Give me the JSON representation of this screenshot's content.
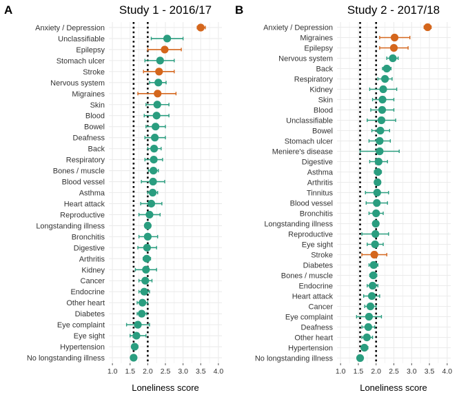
{
  "colors": {
    "typical": "#2a9d7f",
    "outlier": "#d4661c",
    "grid": "#ebebeb",
    "refline": "#000000"
  },
  "chart_data": [
    {
      "type": "scatter",
      "panel_label": "A",
      "title": "Study 1 - 2016/17",
      "xlabel": "Loneliness score",
      "xlim": [
        0.9,
        4.1
      ],
      "xticks": [
        "1.0",
        "1.5",
        "2.0",
        "2.5",
        "3.0",
        "3.5",
        "4.0"
      ],
      "reference_lines": [
        1.6,
        2.0
      ],
      "points": [
        {
          "label": "Anxiety / Depression",
          "value": 3.5,
          "lo": 3.4,
          "hi": 3.63,
          "group": "outlier"
        },
        {
          "label": "Unclassifiable",
          "value": 2.55,
          "lo": 2.1,
          "hi": 3.0,
          "group": "typical"
        },
        {
          "label": "Epilepsy",
          "value": 2.48,
          "lo": 2.0,
          "hi": 2.95,
          "group": "outlier"
        },
        {
          "label": "Stomach ulcer",
          "value": 2.35,
          "lo": 1.92,
          "hi": 2.75,
          "group": "typical"
        },
        {
          "label": "Stroke",
          "value": 2.32,
          "lo": 1.88,
          "hi": 2.75,
          "group": "outlier"
        },
        {
          "label": "Nervous system",
          "value": 2.3,
          "lo": 2.05,
          "hi": 2.52,
          "group": "typical"
        },
        {
          "label": "Migraines",
          "value": 2.28,
          "lo": 1.72,
          "hi": 2.8,
          "group": "outlier"
        },
        {
          "label": "Skin",
          "value": 2.27,
          "lo": 1.95,
          "hi": 2.6,
          "group": "typical"
        },
        {
          "label": "Blood",
          "value": 2.25,
          "lo": 1.9,
          "hi": 2.6,
          "group": "typical"
        },
        {
          "label": "Bowel",
          "value": 2.22,
          "lo": 1.95,
          "hi": 2.5,
          "group": "typical"
        },
        {
          "label": "Deafness",
          "value": 2.2,
          "lo": 1.92,
          "hi": 2.5,
          "group": "typical"
        },
        {
          "label": "Back",
          "value": 2.18,
          "lo": 2.0,
          "hi": 2.38,
          "group": "typical"
        },
        {
          "label": "Respiratory",
          "value": 2.17,
          "lo": 1.92,
          "hi": 2.42,
          "group": "typical"
        },
        {
          "label": "Bones / muscle",
          "value": 2.16,
          "lo": 2.02,
          "hi": 2.3,
          "group": "typical"
        },
        {
          "label": "Blood vessel",
          "value": 2.15,
          "lo": 1.82,
          "hi": 2.48,
          "group": "typical"
        },
        {
          "label": "Asthma",
          "value": 2.14,
          "lo": 2.0,
          "hi": 2.28,
          "group": "typical"
        },
        {
          "label": "Heart attack",
          "value": 2.1,
          "lo": 1.8,
          "hi": 2.4,
          "group": "typical"
        },
        {
          "label": "Reproductive",
          "value": 2.05,
          "lo": 1.75,
          "hi": 2.35,
          "group": "typical"
        },
        {
          "label": "Longstanding illness",
          "value": 2.0,
          "lo": 1.97,
          "hi": 2.03,
          "group": "typical"
        },
        {
          "label": "Bronchitis",
          "value": 2.0,
          "lo": 1.75,
          "hi": 2.28,
          "group": "typical"
        },
        {
          "label": "Digestive",
          "value": 1.98,
          "lo": 1.72,
          "hi": 2.25,
          "group": "typical"
        },
        {
          "label": "Arthritis",
          "value": 1.97,
          "lo": 1.87,
          "hi": 2.08,
          "group": "typical"
        },
        {
          "label": "Kidney",
          "value": 1.95,
          "lo": 1.65,
          "hi": 2.25,
          "group": "typical"
        },
        {
          "label": "Cancer",
          "value": 1.93,
          "lo": 1.75,
          "hi": 2.12,
          "group": "typical"
        },
        {
          "label": "Endocrine",
          "value": 1.9,
          "lo": 1.75,
          "hi": 2.05,
          "group": "typical"
        },
        {
          "label": "Other heart",
          "value": 1.85,
          "lo": 1.7,
          "hi": 2.0,
          "group": "typical"
        },
        {
          "label": "Diabetes",
          "value": 1.83,
          "lo": 1.7,
          "hi": 1.97,
          "group": "typical"
        },
        {
          "label": "Eye complaint",
          "value": 1.72,
          "lo": 1.4,
          "hi": 2.05,
          "group": "typical"
        },
        {
          "label": "Eye sight",
          "value": 1.68,
          "lo": 1.5,
          "hi": 1.95,
          "group": "typical"
        },
        {
          "label": "Hypertension",
          "value": 1.63,
          "lo": 1.55,
          "hi": 1.72,
          "group": "typical"
        },
        {
          "label": "No longstanding illness",
          "value": 1.6,
          "lo": 1.57,
          "hi": 1.63,
          "group": "typical"
        }
      ]
    },
    {
      "type": "scatter",
      "panel_label": "B",
      "title": "Study 2 - 2017/18",
      "xlabel": "Loneliness score",
      "xlim": [
        0.9,
        4.1
      ],
      "xticks": [
        "1.0",
        "1.5",
        "2.0",
        "2.5",
        "3.0",
        "3.5",
        "4.0"
      ],
      "reference_lines": [
        1.55,
        2.0
      ],
      "points": [
        {
          "label": "Anxiety / Depression",
          "value": 3.45,
          "lo": 3.35,
          "hi": 3.55,
          "group": "outlier"
        },
        {
          "label": "Migraines",
          "value": 2.52,
          "lo": 2.1,
          "hi": 2.95,
          "group": "outlier"
        },
        {
          "label": "Epilepsy",
          "value": 2.5,
          "lo": 2.1,
          "hi": 2.9,
          "group": "outlier"
        },
        {
          "label": "Nervous system",
          "value": 2.47,
          "lo": 2.3,
          "hi": 2.62,
          "group": "typical"
        },
        {
          "label": "Back",
          "value": 2.3,
          "lo": 2.18,
          "hi": 2.42,
          "group": "typical"
        },
        {
          "label": "Respiratory",
          "value": 2.25,
          "lo": 2.05,
          "hi": 2.45,
          "group": "typical"
        },
        {
          "label": "Kidney",
          "value": 2.2,
          "lo": 1.82,
          "hi": 2.58,
          "group": "typical"
        },
        {
          "label": "Skin",
          "value": 2.18,
          "lo": 1.9,
          "hi": 2.5,
          "group": "typical"
        },
        {
          "label": "Blood",
          "value": 2.17,
          "lo": 1.85,
          "hi": 2.5,
          "group": "typical"
        },
        {
          "label": "Unclassifiable",
          "value": 2.15,
          "lo": 1.75,
          "hi": 2.55,
          "group": "typical"
        },
        {
          "label": "Bowel",
          "value": 2.12,
          "lo": 1.88,
          "hi": 2.38,
          "group": "typical"
        },
        {
          "label": "Stomach ulcer",
          "value": 2.1,
          "lo": 1.8,
          "hi": 2.4,
          "group": "typical"
        },
        {
          "label": "Meniere's disease",
          "value": 2.1,
          "lo": 1.55,
          "hi": 2.65,
          "group": "typical"
        },
        {
          "label": "Digestive",
          "value": 2.07,
          "lo": 1.82,
          "hi": 2.32,
          "group": "typical"
        },
        {
          "label": "Asthma",
          "value": 2.05,
          "lo": 1.95,
          "hi": 2.15,
          "group": "typical"
        },
        {
          "label": "Arthritis",
          "value": 2.04,
          "lo": 1.96,
          "hi": 2.12,
          "group": "typical"
        },
        {
          "label": "Tinnitus",
          "value": 2.03,
          "lo": 1.7,
          "hi": 2.35,
          "group": "typical"
        },
        {
          "label": "Blood vessel",
          "value": 2.02,
          "lo": 1.72,
          "hi": 2.32,
          "group": "typical"
        },
        {
          "label": "Bronchitis",
          "value": 2.0,
          "lo": 1.8,
          "hi": 2.2,
          "group": "typical"
        },
        {
          "label": "Longstanding illness",
          "value": 1.99,
          "lo": 1.96,
          "hi": 2.02,
          "group": "typical"
        },
        {
          "label": "Reproductive",
          "value": 1.98,
          "lo": 1.6,
          "hi": 2.35,
          "group": "typical"
        },
        {
          "label": "Eye sight",
          "value": 1.97,
          "lo": 1.75,
          "hi": 2.2,
          "group": "typical"
        },
        {
          "label": "Stroke",
          "value": 1.95,
          "lo": 1.6,
          "hi": 2.3,
          "group": "outlier"
        },
        {
          "label": "Diabetes",
          "value": 1.93,
          "lo": 1.8,
          "hi": 2.05,
          "group": "typical"
        },
        {
          "label": "Bones / muscle",
          "value": 1.92,
          "lo": 1.82,
          "hi": 2.02,
          "group": "typical"
        },
        {
          "label": "Endocrine",
          "value": 1.9,
          "lo": 1.75,
          "hi": 2.05,
          "group": "typical"
        },
        {
          "label": "Heart attack",
          "value": 1.88,
          "lo": 1.65,
          "hi": 2.1,
          "group": "typical"
        },
        {
          "label": "Cancer",
          "value": 1.84,
          "lo": 1.68,
          "hi": 2.0,
          "group": "typical"
        },
        {
          "label": "Eye complaint",
          "value": 1.8,
          "lo": 1.45,
          "hi": 2.15,
          "group": "typical"
        },
        {
          "label": "Deafness",
          "value": 1.78,
          "lo": 1.6,
          "hi": 1.96,
          "group": "typical"
        },
        {
          "label": "Other heart",
          "value": 1.74,
          "lo": 1.6,
          "hi": 1.9,
          "group": "typical"
        },
        {
          "label": "Hypertension",
          "value": 1.67,
          "lo": 1.58,
          "hi": 1.77,
          "group": "typical"
        },
        {
          "label": "No longstanding illness",
          "value": 1.55,
          "lo": 1.52,
          "hi": 1.58,
          "group": "typical"
        }
      ]
    }
  ]
}
